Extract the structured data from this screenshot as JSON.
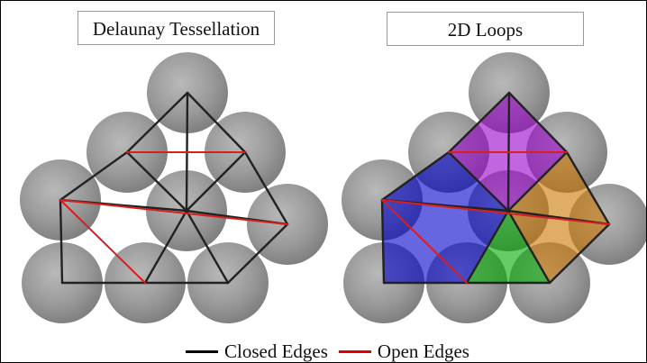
{
  "panels": [
    {
      "title": "Delaunay Tessellation"
    },
    {
      "title": "2D Loops"
    }
  ],
  "legend": [
    {
      "label": "Closed Edges",
      "color": "#000000"
    },
    {
      "label": "Open Edges",
      "color": "#e00000"
    }
  ],
  "colors": {
    "sphere": "#8e8e8e",
    "closed_edge": "#222222",
    "open_edge": "#d81e1e",
    "loop_blue": "#0000cc",
    "loop_purple": "#9900cc",
    "loop_orange": "#cc7700",
    "loop_green": "#00aa00"
  },
  "loops": [
    {
      "name": "blue-loop",
      "color": "loop_blue"
    },
    {
      "name": "purple-loop",
      "color": "loop_purple"
    },
    {
      "name": "orange-loop",
      "color": "loop_orange"
    },
    {
      "name": "green-loop",
      "color": "loop_green"
    }
  ]
}
